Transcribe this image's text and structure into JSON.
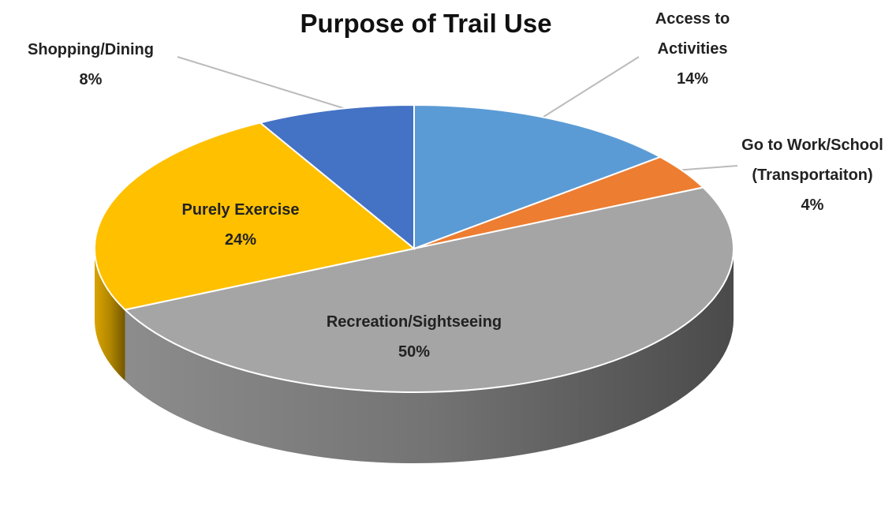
{
  "chart_data": {
    "type": "pie",
    "title": "Purpose of Trail Use",
    "categories": [
      "Access to Activities",
      "Go to Work/School (Transportaiton)",
      "Recreation/Sightseeing",
      "Purely Exercise",
      "Shopping/Dining"
    ],
    "values": [
      14,
      4,
      50,
      24,
      8
    ],
    "value_labels": [
      "14%",
      "4%",
      "50%",
      "24%",
      "8%"
    ],
    "colors": [
      "#5b9bd5",
      "#ed7d31",
      "#a5a5a5",
      "#ffc000",
      "#4472c4"
    ]
  }
}
